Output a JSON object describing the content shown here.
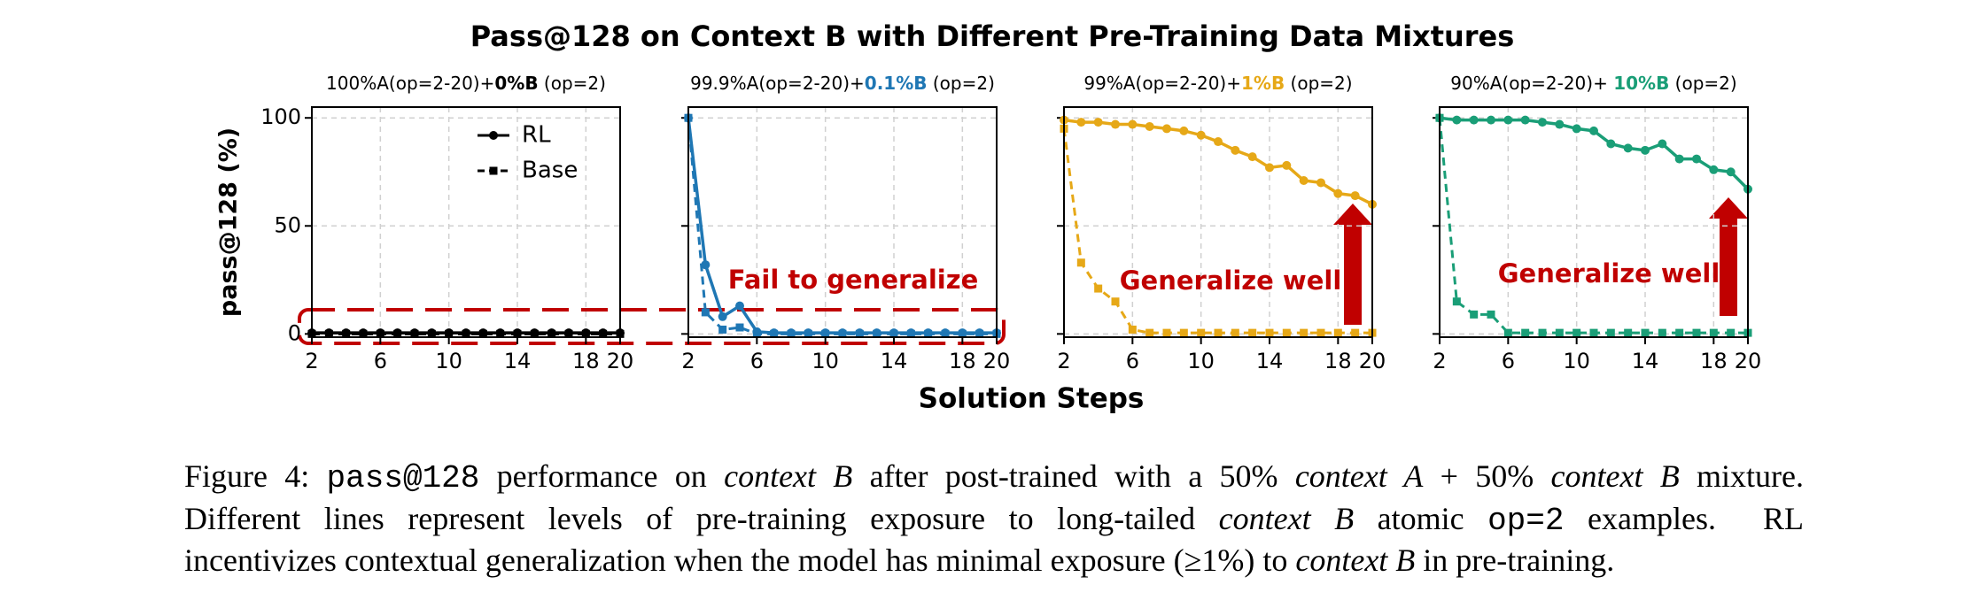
{
  "title": "Pass@128 on Context B with Different Pre-Training Data Mixtures",
  "xlabel": "Solution Steps",
  "ylabel": "pass@128 (%)",
  "chart_data": [
    {
      "type": "line",
      "title_parts": [
        "100%A(op=2-20)+",
        "0%B",
        " (op=2)"
      ],
      "x": [
        2,
        3,
        4,
        5,
        6,
        7,
        8,
        9,
        10,
        11,
        12,
        13,
        14,
        15,
        16,
        17,
        18,
        19,
        20
      ],
      "xlim": [
        2,
        20
      ],
      "xticks": [
        2,
        6,
        10,
        14,
        18,
        20
      ],
      "ylim": [
        -1.5,
        105
      ],
      "yticks": [
        0,
        50,
        100
      ],
      "ytick_labels": true,
      "grid": true,
      "legend": "upper center",
      "series": [
        {
          "name": "RL",
          "color": "#000000",
          "values": [
            0.5,
            0.5,
            0.5,
            0.5,
            0.5,
            0.5,
            0.5,
            0.5,
            0.5,
            0.5,
            0.5,
            0.5,
            0.5,
            0.5,
            0.5,
            0.5,
            0.5,
            0.5,
            0.5
          ]
        },
        {
          "name": "Base",
          "color": "#000000",
          "values": [
            0,
            0,
            0,
            0,
            0,
            0,
            0,
            0,
            0,
            0,
            0,
            0,
            0,
            0,
            0,
            0,
            0,
            0,
            0
          ]
        }
      ]
    },
    {
      "type": "line",
      "title_parts": [
        "99.9%A(op=2-20)+",
        "0.1%B",
        " (op=2)"
      ],
      "x": [
        2,
        3,
        4,
        5,
        6,
        7,
        8,
        9,
        10,
        11,
        12,
        13,
        14,
        15,
        16,
        17,
        18,
        19,
        20
      ],
      "xlim": [
        2,
        20
      ],
      "xticks": [
        2,
        6,
        10,
        14,
        18,
        20
      ],
      "ylim": [
        -1.5,
        105
      ],
      "yticks": [
        0,
        50,
        100
      ],
      "ytick_labels": false,
      "grid": true,
      "annotation": "Fail to generalize",
      "series": [
        {
          "name": "RL",
          "color": "#1f77b4",
          "values": [
            100,
            32,
            8,
            13,
            1,
            0.5,
            0.5,
            0.5,
            0.5,
            0.5,
            0.5,
            0.5,
            0.5,
            0.5,
            0.5,
            0.5,
            0.5,
            0.5,
            0.5
          ]
        },
        {
          "name": "Base",
          "color": "#1f77b4",
          "values": [
            100,
            10,
            2,
            3,
            0,
            0,
            0,
            0,
            0,
            0,
            0,
            0,
            0,
            0,
            0,
            0,
            0,
            0,
            0
          ]
        }
      ]
    },
    {
      "type": "line",
      "title_parts": [
        "99%A(op=2-20)+",
        "1%B",
        " (op=2)"
      ],
      "x": [
        2,
        3,
        4,
        5,
        6,
        7,
        8,
        9,
        10,
        11,
        12,
        13,
        14,
        15,
        16,
        17,
        18,
        19,
        20
      ],
      "xlim": [
        2,
        20
      ],
      "xticks": [
        2,
        6,
        10,
        14,
        18,
        20
      ],
      "ylim": [
        -1.5,
        105
      ],
      "yticks": [
        0,
        50,
        100
      ],
      "ytick_labels": false,
      "grid": true,
      "annotation": "Generalize well",
      "series": [
        {
          "name": "RL",
          "color": "#e6a817",
          "values": [
            99,
            98,
            98,
            97,
            97,
            96,
            95,
            94,
            92,
            89,
            85,
            82,
            77,
            78,
            71,
            70,
            65,
            64,
            60
          ]
        },
        {
          "name": "Base",
          "color": "#e6a817",
          "values": [
            95,
            33,
            21,
            15,
            2,
            0.5,
            0.5,
            0.5,
            0.5,
            0.5,
            0.5,
            0.5,
            0.5,
            0.5,
            0.5,
            0.5,
            0.5,
            0.5,
            0.5
          ]
        }
      ]
    },
    {
      "type": "line",
      "title_parts": [
        "90%A(op=2-20)+ ",
        "10%B",
        " (op=2)"
      ],
      "x": [
        2,
        3,
        4,
        5,
        6,
        7,
        8,
        9,
        10,
        11,
        12,
        13,
        14,
        15,
        16,
        17,
        18,
        19,
        20
      ],
      "xlim": [
        2,
        20
      ],
      "xticks": [
        2,
        6,
        10,
        14,
        18,
        20
      ],
      "ylim": [
        -1.5,
        105
      ],
      "yticks": [
        0,
        50,
        100
      ],
      "ytick_labels": false,
      "grid": true,
      "annotation": "Generalize well",
      "series": [
        {
          "name": "RL",
          "color": "#1a9e77",
          "values": [
            100,
            99,
            99,
            99,
            99,
            99,
            98,
            97,
            95,
            94,
            88,
            86,
            85,
            88,
            81,
            81,
            76,
            75,
            67
          ]
        },
        {
          "name": "Base",
          "color": "#1a9e77",
          "values": [
            100,
            15,
            9,
            9,
            0.5,
            0.5,
            0.5,
            0.5,
            0.5,
            0.5,
            0.5,
            0.5,
            0.5,
            0.5,
            0.5,
            0.5,
            0.5,
            0.5,
            0.5
          ]
        }
      ]
    }
  ],
  "caption": [
    [
      "Figure 4: ",
      "pass@128",
      " performance on ",
      "context B",
      " after post-trained with a 50% ",
      "context A",
      " + 50% ",
      "context B",
      " mixture."
    ],
    [
      "Different lines represent levels of pre-training exposure to long-tailed ",
      "context B",
      " atomic ",
      "op=2",
      " examples.  RL"
    ],
    [
      "incentivizes contextual generalization when the model has minimal exposure (≥1%) to ",
      "context B",
      " in pre-training."
    ]
  ]
}
